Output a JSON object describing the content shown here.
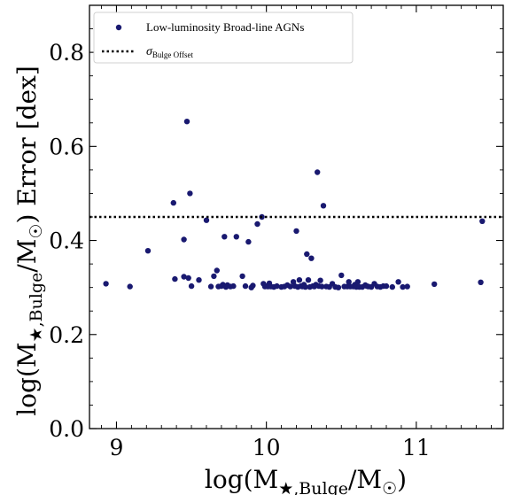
{
  "chart_data": {
    "type": "scatter",
    "xlabel": "log(M★,Bulge/M☉)",
    "ylabel": "log(M★,Bulge/M☉) Error [dex]",
    "xlim": [
      8.82,
      11.58
    ],
    "ylim": [
      0.0,
      0.9
    ],
    "xticks": [
      9,
      10,
      11
    ],
    "yticks": [
      0.0,
      0.2,
      0.4,
      0.6,
      0.8
    ],
    "xtick_labels": [
      "9",
      "10",
      "11"
    ],
    "ytick_labels": [
      "0.0",
      "0.2",
      "0.4",
      "0.6",
      "0.8"
    ],
    "grid": false,
    "legend_position": "top-left",
    "colors": {
      "points": "#191970",
      "line": "#000000"
    },
    "series": [
      {
        "name": "Low-luminosity Broad-line AGNs",
        "type": "scatter",
        "x": [
          8.93,
          9.09,
          9.21,
          9.38,
          9.39,
          9.45,
          9.45,
          9.47,
          9.48,
          9.49,
          9.5,
          9.55,
          9.6,
          9.63,
          9.65,
          9.67,
          9.68,
          9.7,
          9.71,
          9.72,
          9.73,
          9.74,
          9.76,
          9.78,
          9.8,
          9.84,
          9.86,
          9.88,
          9.9,
          9.91,
          9.94,
          9.97,
          9.98,
          9.99,
          10.0,
          10.01,
          10.02,
          10.03,
          10.05,
          10.07,
          10.1,
          10.12,
          10.14,
          10.16,
          10.18,
          10.19,
          10.2,
          10.21,
          10.22,
          10.23,
          10.24,
          10.25,
          10.26,
          10.27,
          10.28,
          10.29,
          10.3,
          10.31,
          10.32,
          10.33,
          10.34,
          10.35,
          10.36,
          10.37,
          10.38,
          10.4,
          10.42,
          10.44,
          10.46,
          10.48,
          10.5,
          10.52,
          10.54,
          10.55,
          10.56,
          10.58,
          10.59,
          10.6,
          10.61,
          10.62,
          10.64,
          10.66,
          10.67,
          10.68,
          10.7,
          10.72,
          10.74,
          10.76,
          10.78,
          10.8,
          10.84,
          10.88,
          10.91,
          10.94,
          11.12,
          11.43,
          11.44
        ],
        "y": [
          0.308,
          0.302,
          0.378,
          0.48,
          0.318,
          0.402,
          0.323,
          0.653,
          0.32,
          0.5,
          0.303,
          0.316,
          0.443,
          0.302,
          0.324,
          0.336,
          0.302,
          0.303,
          0.306,
          0.408,
          0.301,
          0.305,
          0.302,
          0.303,
          0.408,
          0.324,
          0.303,
          0.397,
          0.3,
          0.304,
          0.435,
          0.45,
          0.308,
          0.302,
          0.303,
          0.302,
          0.309,
          0.302,
          0.301,
          0.303,
          0.301,
          0.302,
          0.305,
          0.302,
          0.312,
          0.303,
          0.42,
          0.301,
          0.316,
          0.303,
          0.302,
          0.306,
          0.301,
          0.371,
          0.316,
          0.301,
          0.362,
          0.303,
          0.302,
          0.306,
          0.545,
          0.303,
          0.315,
          0.302,
          0.474,
          0.302,
          0.301,
          0.308,
          0.301,
          0.3,
          0.326,
          0.302,
          0.302,
          0.312,
          0.302,
          0.302,
          0.306,
          0.301,
          0.312,
          0.301,
          0.301,
          0.305,
          0.303,
          0.302,
          0.301,
          0.308,
          0.302,
          0.301,
          0.303,
          0.303,
          0.301,
          0.312,
          0.301,
          0.302,
          0.307,
          0.311,
          0.441
        ]
      },
      {
        "name": "σBulge Offset",
        "type": "hline",
        "y": 0.45
      }
    ]
  }
}
